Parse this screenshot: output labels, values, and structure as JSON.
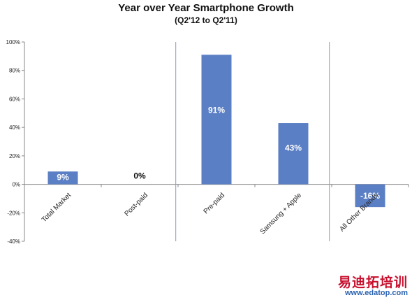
{
  "chart_data": {
    "type": "bar",
    "title": "Year over Year Smartphone Growth",
    "subtitle": "(Q2'12 to Q2'11)",
    "categories": [
      "Total Market",
      "Post-paid",
      "Pre-paid",
      "Samsung + Apple",
      "All Other Brands"
    ],
    "series": [
      {
        "values": [
          9,
          0,
          91,
          43,
          -16
        ]
      }
    ],
    "data_labels": [
      "9%",
      "0%",
      "91%",
      "43%",
      "-16%"
    ],
    "ylim": [
      -40,
      100
    ],
    "yticks": [
      -40,
      -20,
      0,
      20,
      40,
      60,
      80,
      100
    ],
    "ytick_labels": [
      "-40%",
      "-20%",
      "0%",
      "20%",
      "40%",
      "60%",
      "80%",
      "100%"
    ],
    "xlabel": "",
    "ylabel": "",
    "grid": false,
    "separators_after": [
      1,
      3
    ],
    "bar_color": "#5b7fc4"
  },
  "watermark": {
    "brand": "易迪拓培训",
    "url": "www.edatop.com"
  }
}
